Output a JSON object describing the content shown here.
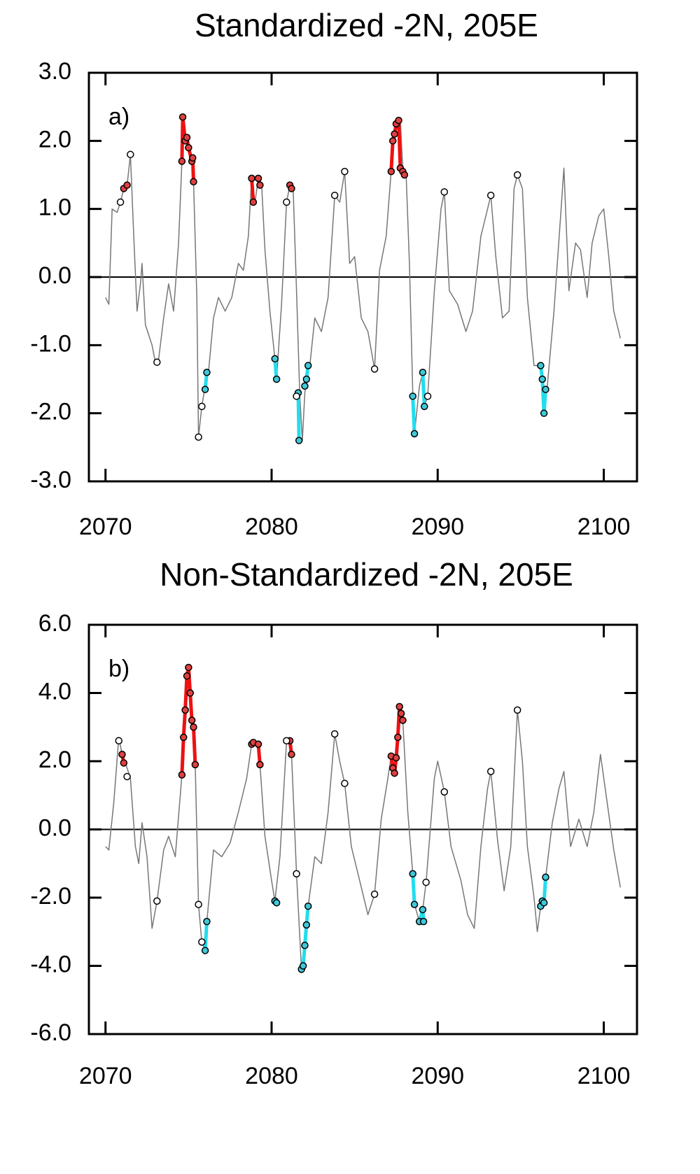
{
  "chart_data": [
    {
      "type": "line",
      "title": "Standardized -2N, 205E",
      "annotation": "a)",
      "xlim": [
        2069,
        2102
      ],
      "xticks": [
        2070,
        2080,
        2090,
        2100
      ],
      "ylim": [
        -3,
        3
      ],
      "yticks": [
        {
          "value": -3,
          "label": "-3.0"
        },
        {
          "value": -2,
          "label": "-2.0"
        },
        {
          "value": -1,
          "label": "-1.0"
        },
        {
          "value": 0,
          "label": "0.0"
        },
        {
          "value": 1,
          "label": "1.0"
        },
        {
          "value": 2,
          "label": "2.0"
        },
        {
          "value": 3,
          "label": "3.0"
        }
      ],
      "hlines": [
        0
      ],
      "series": [
        {
          "color": "#777777",
          "line": true,
          "markers": false,
          "x": [
            2070.0,
            2070.2,
            2070.4,
            2070.7,
            2070.9,
            2071.1,
            2071.3,
            2071.5,
            2071.7,
            2071.9,
            2072.1,
            2072.2,
            2072.4,
            2072.8,
            2073.0,
            2073.2,
            2073.5,
            2073.8,
            2074.1,
            2074.4,
            2074.6,
            2074.65,
            2074.8,
            2075.0,
            2075.2,
            2075.3,
            2075.5,
            2075.6,
            2075.8,
            2076.0,
            2076.2,
            2076.5,
            2076.8,
            2077.2,
            2077.6,
            2078.0,
            2078.3,
            2078.6,
            2078.8,
            2079.0,
            2079.2,
            2079.4,
            2079.6,
            2079.9,
            2080.2,
            2080.3,
            2080.6,
            2080.9,
            2081.1,
            2081.3,
            2081.5,
            2081.7,
            2081.85,
            2082.0,
            2082.1,
            2082.3,
            2082.6,
            2083.0,
            2083.4,
            2083.8,
            2084.1,
            2084.4,
            2084.7,
            2085.0,
            2085.4,
            2085.8,
            2086.2,
            2086.5,
            2086.9,
            2087.2,
            2087.4,
            2087.6,
            2087.75,
            2087.9,
            2088.1,
            2088.3,
            2088.5,
            2088.6,
            2088.9,
            2089.1,
            2089.2,
            2089.4,
            2089.8,
            2090.2,
            2090.4,
            2090.7,
            2091.2,
            2091.7,
            2092.1,
            2092.6,
            2093.0,
            2093.2,
            2093.5,
            2093.9,
            2094.3,
            2094.6,
            2094.8,
            2095.1,
            2095.4,
            2095.8,
            2096.2,
            2096.4,
            2096.6,
            2097.0,
            2097.4,
            2097.6,
            2097.9,
            2098.3,
            2098.6,
            2099.0,
            2099.3,
            2099.7,
            2100.0,
            2100.3,
            2100.6,
            2101.0
          ],
          "values": [
            -0.3,
            -0.4,
            1.0,
            0.95,
            1.1,
            1.3,
            1.35,
            1.8,
            0.6,
            -0.5,
            -0.1,
            0.2,
            -0.7,
            -1.0,
            -1.25,
            -1.2,
            -0.6,
            -0.1,
            -0.5,
            0.5,
            1.7,
            2.35,
            2.0,
            1.9,
            1.7,
            1.4,
            -0.3,
            -2.35,
            -1.9,
            -1.6,
            -1.4,
            -0.6,
            -0.3,
            -0.5,
            -0.3,
            0.2,
            0.1,
            0.6,
            1.45,
            1.1,
            1.45,
            1.35,
            0.4,
            -0.5,
            -1.2,
            -1.5,
            -0.4,
            1.1,
            1.35,
            1.3,
            -0.2,
            -1.75,
            -2.4,
            -1.7,
            -1.5,
            -1.3,
            -0.6,
            -0.8,
            -0.3,
            1.2,
            1.1,
            1.55,
            0.2,
            0.3,
            -0.6,
            -0.8,
            -1.35,
            0.1,
            0.6,
            1.55,
            2.1,
            2.25,
            2.3,
            1.6,
            1.5,
            0.2,
            -1.7,
            -2.3,
            -1.6,
            -1.4,
            -1.9,
            -1.75,
            -0.2,
            1.0,
            1.25,
            -0.2,
            -0.4,
            -0.8,
            -0.5,
            0.6,
            1.0,
            1.2,
            0.3,
            -0.6,
            -0.5,
            1.3,
            1.5,
            1.3,
            -0.3,
            -1.3,
            -1.3,
            -2.0,
            -1.6,
            -0.5,
            0.9,
            1.6,
            -0.2,
            0.5,
            0.4,
            -0.3,
            0.5,
            0.9,
            1.0,
            0.3,
            -0.5,
            -0.9
          ]
        },
        {
          "color": "#ee1111",
          "line": true,
          "markers": true,
          "marker_fill": "#e04040",
          "x": [
            2071.1,
            2071.3,
            null,
            2074.6,
            2074.65,
            2074.8,
            2074.9,
            2075.0,
            2075.2,
            2075.25,
            2075.3,
            null,
            2078.8,
            2078.9,
            null,
            2079.2,
            2079.3,
            null,
            2081.1,
            2081.2,
            null,
            2087.2,
            2087.3,
            2087.4,
            2087.5,
            2087.65,
            2087.75,
            2087.9,
            2088.0
          ],
          "values": [
            1.3,
            1.35,
            null,
            1.7,
            2.35,
            2.0,
            2.05,
            1.9,
            1.7,
            1.75,
            1.4,
            null,
            1.45,
            1.1,
            null,
            1.45,
            1.35,
            null,
            1.35,
            1.3,
            null,
            1.55,
            2.0,
            2.1,
            2.25,
            2.3,
            1.6,
            1.55,
            1.5
          ]
        },
        {
          "color": "#22ddee",
          "line": true,
          "markers": true,
          "marker_fill": "#40c8d8",
          "x": [
            2076.0,
            2076.1,
            null,
            2080.2,
            2080.3,
            null,
            2081.6,
            2081.65,
            null,
            2082.0,
            2082.1,
            2082.2,
            null,
            2088.5,
            2088.6,
            null,
            2089.1,
            2089.2,
            null,
            2096.2,
            2096.3,
            2096.4,
            2096.5
          ],
          "values": [
            -1.65,
            -1.4,
            null,
            -1.2,
            -1.5,
            null,
            -1.7,
            -2.4,
            null,
            -1.6,
            -1.5,
            -1.3,
            null,
            -1.75,
            -2.3,
            null,
            -1.4,
            -1.9,
            null,
            -1.3,
            -1.5,
            -2.0,
            -1.65
          ]
        },
        {
          "color": "#000000",
          "line": false,
          "markers": true,
          "marker_fill": "#ffffff",
          "x": [
            2070.9,
            2071.5,
            2073.1,
            2075.6,
            2075.8,
            2080.9,
            2081.5,
            2083.8,
            2084.4,
            2086.2,
            2089.4,
            2090.4,
            2093.2,
            2094.8
          ],
          "values": [
            1.1,
            1.8,
            -1.25,
            -2.35,
            -1.9,
            1.1,
            -1.75,
            1.2,
            1.55,
            -1.35,
            -1.75,
            1.25,
            1.2,
            1.5
          ]
        }
      ]
    },
    {
      "type": "line",
      "title": "Non-Standardized -2N, 205E",
      "annotation": "b)",
      "xlim": [
        2069,
        2102
      ],
      "xticks": [
        2070,
        2080,
        2090,
        2100
      ],
      "ylim": [
        -6,
        6
      ],
      "yticks": [
        {
          "value": -6,
          "label": "-6.0"
        },
        {
          "value": -4,
          "label": "-4.0"
        },
        {
          "value": -2,
          "label": "-2.0"
        },
        {
          "value": 0,
          "label": "0.0"
        },
        {
          "value": 2,
          "label": "2.0"
        },
        {
          "value": 4,
          "label": "4.0"
        },
        {
          "value": 6,
          "label": "6.0"
        }
      ],
      "hlines": [
        0
      ],
      "series": [
        {
          "color": "#777777",
          "line": true,
          "markers": false,
          "x": [
            2070.0,
            2070.2,
            2070.5,
            2070.8,
            2071.0,
            2071.3,
            2071.5,
            2071.8,
            2072.0,
            2072.2,
            2072.5,
            2072.8,
            2073.1,
            2073.5,
            2073.8,
            2074.2,
            2074.6,
            2074.7,
            2074.8,
            2074.9,
            2075.0,
            2075.1,
            2075.2,
            2075.3,
            2075.4,
            2075.6,
            2075.8,
            2076.0,
            2076.1,
            2076.5,
            2077.0,
            2077.5,
            2078.0,
            2078.5,
            2078.8,
            2079.2,
            2079.3,
            2079.6,
            2080.0,
            2080.2,
            2080.5,
            2080.9,
            2081.1,
            2081.2,
            2081.5,
            2081.8,
            2081.9,
            2082.0,
            2082.1,
            2082.2,
            2082.6,
            2083.0,
            2083.4,
            2083.8,
            2084.1,
            2084.4,
            2084.8,
            2085.3,
            2085.8,
            2086.2,
            2086.6,
            2087.0,
            2087.2,
            2087.3,
            2087.4,
            2087.5,
            2087.6,
            2087.7,
            2087.8,
            2087.9,
            2088.2,
            2088.5,
            2088.6,
            2088.9,
            2089.1,
            2089.3,
            2089.8,
            2090.0,
            2090.4,
            2090.8,
            2091.4,
            2091.8,
            2092.2,
            2092.6,
            2093.0,
            2093.2,
            2093.6,
            2094.0,
            2094.4,
            2094.8,
            2095.1,
            2095.4,
            2095.8,
            2096.0,
            2096.2,
            2096.4,
            2096.5,
            2096.9,
            2097.3,
            2097.6,
            2098.0,
            2098.5,
            2099.0,
            2099.4,
            2099.8,
            2100.2,
            2100.6,
            2101.0
          ],
          "values": [
            -0.5,
            -0.6,
            0.8,
            2.7,
            2.2,
            1.8,
            1.5,
            -0.5,
            -1.0,
            0.2,
            -0.8,
            -2.9,
            -2.1,
            -0.6,
            -0.2,
            -0.8,
            1.6,
            2.7,
            3.5,
            4.5,
            4.75,
            4.0,
            3.2,
            3.0,
            1.9,
            -2.2,
            -3.3,
            -3.55,
            -2.7,
            -0.6,
            -0.8,
            -0.4,
            0.5,
            1.5,
            2.5,
            2.5,
            1.9,
            -0.2,
            -1.5,
            -2.1,
            -0.8,
            2.6,
            2.6,
            2.2,
            -1.3,
            -4.1,
            -4.0,
            -3.4,
            -2.8,
            -2.25,
            -0.8,
            -1.0,
            0.5,
            2.8,
            2.0,
            1.35,
            -0.5,
            -1.5,
            -2.5,
            -1.9,
            0.3,
            1.5,
            2.15,
            1.8,
            1.65,
            2.1,
            2.7,
            3.6,
            3.4,
            3.2,
            0.5,
            -1.3,
            -2.2,
            -2.7,
            -2.35,
            -1.55,
            1.5,
            2.0,
            1.1,
            -0.5,
            -1.5,
            -2.5,
            -2.9,
            -0.5,
            1.2,
            1.7,
            -0.3,
            -1.8,
            -0.5,
            3.5,
            2.0,
            -0.5,
            -2.0,
            -3.0,
            -2.25,
            -2.1,
            -1.4,
            0.2,
            1.2,
            1.7,
            -0.5,
            0.3,
            -0.5,
            0.5,
            2.2,
            0.8,
            -0.6,
            -1.7
          ]
        },
        {
          "color": "#ee1111",
          "line": true,
          "markers": true,
          "marker_fill": "#e04040",
          "x": [
            2071.0,
            2071.1,
            null,
            2074.6,
            2074.7,
            2074.8,
            2074.9,
            2075.0,
            2075.1,
            2075.2,
            2075.3,
            2075.4,
            null,
            2078.8,
            2078.9,
            2079.2,
            2079.3,
            null,
            2081.1,
            2081.2,
            null,
            2087.2,
            2087.3,
            2087.4,
            2087.5,
            2087.6,
            2087.7,
            2087.8,
            2087.9
          ],
          "values": [
            2.2,
            1.95,
            null,
            1.6,
            2.7,
            3.5,
            4.5,
            4.75,
            4.0,
            3.2,
            3.0,
            1.9,
            null,
            2.5,
            2.55,
            2.5,
            1.9,
            null,
            2.6,
            2.2,
            null,
            2.15,
            1.8,
            1.65,
            2.1,
            2.7,
            3.6,
            3.4,
            3.2
          ]
        },
        {
          "color": "#22ddee",
          "line": true,
          "markers": true,
          "marker_fill": "#40c8d8",
          "x": [
            2076.0,
            2076.1,
            null,
            2080.2,
            2080.3,
            null,
            2081.8,
            2081.9,
            2082.0,
            2082.1,
            2082.2,
            null,
            2088.5,
            2088.6,
            null,
            2088.9,
            2089.1,
            2089.15,
            null,
            2096.2,
            2096.3,
            2096.4,
            2096.5
          ],
          "values": [
            -3.55,
            -2.7,
            null,
            -2.1,
            -2.15,
            null,
            -4.1,
            -4.0,
            -3.4,
            -2.8,
            -2.25,
            null,
            -1.3,
            -2.2,
            null,
            -2.7,
            -2.35,
            -2.7,
            null,
            -2.25,
            -2.1,
            -2.15,
            -1.4
          ]
        },
        {
          "color": "#000000",
          "line": false,
          "markers": true,
          "marker_fill": "#ffffff",
          "x": [
            2070.8,
            2071.3,
            2073.1,
            2075.6,
            2075.8,
            2080.9,
            2081.5,
            2083.8,
            2084.4,
            2086.2,
            2089.3,
            2090.4,
            2093.2,
            2094.8
          ],
          "values": [
            2.6,
            1.55,
            -2.1,
            -2.2,
            -3.3,
            2.6,
            -1.3,
            2.8,
            1.35,
            -1.9,
            -1.55,
            1.1,
            1.7,
            3.5
          ]
        }
      ]
    }
  ]
}
